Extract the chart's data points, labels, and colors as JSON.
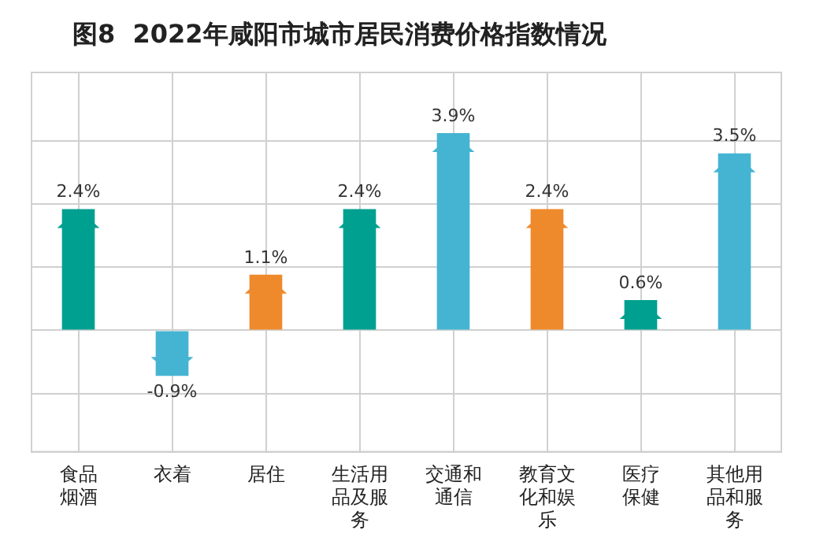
{
  "chart_data": {
    "type": "bar",
    "title": "图8  2022年咸阳市城市居民消费价格指数情况",
    "categories": [
      "食品烟酒",
      "衣着",
      "居住",
      "生活用品及服务",
      "交通和通信",
      "教育文化和娱乐",
      "医疗保健",
      "其他用品和服务"
    ],
    "values": [
      2.4,
      -0.9,
      1.1,
      2.4,
      3.9,
      2.4,
      0.6,
      3.5
    ],
    "colors": [
      "#00a090",
      "#45b4d2",
      "#ee8a2c",
      "#00a090",
      "#45b4d2",
      "#ee8a2c",
      "#00a090",
      "#45b4d2"
    ],
    "value_labels": [
      "2.4%",
      "-0.9%",
      "1.1%",
      "2.4%",
      "3.9%",
      "2.4%",
      "0.6%",
      "3.5%"
    ],
    "ylim": [
      -2.4,
      5.1
    ],
    "yticks": [
      {
        "value": -1.25,
        "label": null
      },
      {
        "value": 0,
        "label": null
      },
      {
        "value": 1.25,
        "label": null
      },
      {
        "value": 2.5,
        "label": null
      },
      {
        "value": 3.75,
        "label": null
      }
    ],
    "grid": true,
    "tick_labels": "x",
    "legend": false
  }
}
